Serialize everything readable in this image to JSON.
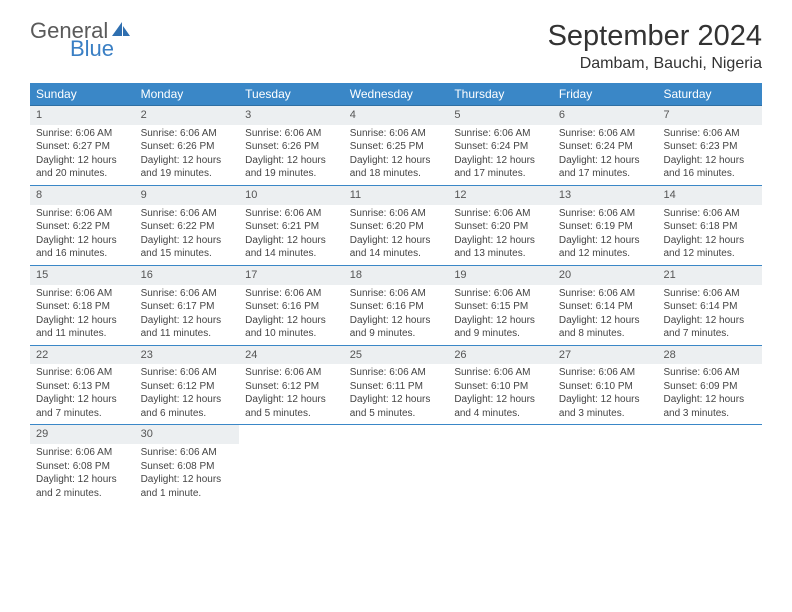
{
  "logo": {
    "top": "General",
    "bottom": "Blue"
  },
  "title": "September 2024",
  "location": "Dambam, Bauchi, Nigeria",
  "header_bg": "#3a87c7",
  "daynum_bg": "#eceff1",
  "weekdays": [
    "Sunday",
    "Monday",
    "Tuesday",
    "Wednesday",
    "Thursday",
    "Friday",
    "Saturday"
  ],
  "weeks": [
    [
      {
        "n": "1",
        "sunrise": "Sunrise: 6:06 AM",
        "sunset": "Sunset: 6:27 PM",
        "day": "Daylight: 12 hours and 20 minutes."
      },
      {
        "n": "2",
        "sunrise": "Sunrise: 6:06 AM",
        "sunset": "Sunset: 6:26 PM",
        "day": "Daylight: 12 hours and 19 minutes."
      },
      {
        "n": "3",
        "sunrise": "Sunrise: 6:06 AM",
        "sunset": "Sunset: 6:26 PM",
        "day": "Daylight: 12 hours and 19 minutes."
      },
      {
        "n": "4",
        "sunrise": "Sunrise: 6:06 AM",
        "sunset": "Sunset: 6:25 PM",
        "day": "Daylight: 12 hours and 18 minutes."
      },
      {
        "n": "5",
        "sunrise": "Sunrise: 6:06 AM",
        "sunset": "Sunset: 6:24 PM",
        "day": "Daylight: 12 hours and 17 minutes."
      },
      {
        "n": "6",
        "sunrise": "Sunrise: 6:06 AM",
        "sunset": "Sunset: 6:24 PM",
        "day": "Daylight: 12 hours and 17 minutes."
      },
      {
        "n": "7",
        "sunrise": "Sunrise: 6:06 AM",
        "sunset": "Sunset: 6:23 PM",
        "day": "Daylight: 12 hours and 16 minutes."
      }
    ],
    [
      {
        "n": "8",
        "sunrise": "Sunrise: 6:06 AM",
        "sunset": "Sunset: 6:22 PM",
        "day": "Daylight: 12 hours and 16 minutes."
      },
      {
        "n": "9",
        "sunrise": "Sunrise: 6:06 AM",
        "sunset": "Sunset: 6:22 PM",
        "day": "Daylight: 12 hours and 15 minutes."
      },
      {
        "n": "10",
        "sunrise": "Sunrise: 6:06 AM",
        "sunset": "Sunset: 6:21 PM",
        "day": "Daylight: 12 hours and 14 minutes."
      },
      {
        "n": "11",
        "sunrise": "Sunrise: 6:06 AM",
        "sunset": "Sunset: 6:20 PM",
        "day": "Daylight: 12 hours and 14 minutes."
      },
      {
        "n": "12",
        "sunrise": "Sunrise: 6:06 AM",
        "sunset": "Sunset: 6:20 PM",
        "day": "Daylight: 12 hours and 13 minutes."
      },
      {
        "n": "13",
        "sunrise": "Sunrise: 6:06 AM",
        "sunset": "Sunset: 6:19 PM",
        "day": "Daylight: 12 hours and 12 minutes."
      },
      {
        "n": "14",
        "sunrise": "Sunrise: 6:06 AM",
        "sunset": "Sunset: 6:18 PM",
        "day": "Daylight: 12 hours and 12 minutes."
      }
    ],
    [
      {
        "n": "15",
        "sunrise": "Sunrise: 6:06 AM",
        "sunset": "Sunset: 6:18 PM",
        "day": "Daylight: 12 hours and 11 minutes."
      },
      {
        "n": "16",
        "sunrise": "Sunrise: 6:06 AM",
        "sunset": "Sunset: 6:17 PM",
        "day": "Daylight: 12 hours and 11 minutes."
      },
      {
        "n": "17",
        "sunrise": "Sunrise: 6:06 AM",
        "sunset": "Sunset: 6:16 PM",
        "day": "Daylight: 12 hours and 10 minutes."
      },
      {
        "n": "18",
        "sunrise": "Sunrise: 6:06 AM",
        "sunset": "Sunset: 6:16 PM",
        "day": "Daylight: 12 hours and 9 minutes."
      },
      {
        "n": "19",
        "sunrise": "Sunrise: 6:06 AM",
        "sunset": "Sunset: 6:15 PM",
        "day": "Daylight: 12 hours and 9 minutes."
      },
      {
        "n": "20",
        "sunrise": "Sunrise: 6:06 AM",
        "sunset": "Sunset: 6:14 PM",
        "day": "Daylight: 12 hours and 8 minutes."
      },
      {
        "n": "21",
        "sunrise": "Sunrise: 6:06 AM",
        "sunset": "Sunset: 6:14 PM",
        "day": "Daylight: 12 hours and 7 minutes."
      }
    ],
    [
      {
        "n": "22",
        "sunrise": "Sunrise: 6:06 AM",
        "sunset": "Sunset: 6:13 PM",
        "day": "Daylight: 12 hours and 7 minutes."
      },
      {
        "n": "23",
        "sunrise": "Sunrise: 6:06 AM",
        "sunset": "Sunset: 6:12 PM",
        "day": "Daylight: 12 hours and 6 minutes."
      },
      {
        "n": "24",
        "sunrise": "Sunrise: 6:06 AM",
        "sunset": "Sunset: 6:12 PM",
        "day": "Daylight: 12 hours and 5 minutes."
      },
      {
        "n": "25",
        "sunrise": "Sunrise: 6:06 AM",
        "sunset": "Sunset: 6:11 PM",
        "day": "Daylight: 12 hours and 5 minutes."
      },
      {
        "n": "26",
        "sunrise": "Sunrise: 6:06 AM",
        "sunset": "Sunset: 6:10 PM",
        "day": "Daylight: 12 hours and 4 minutes."
      },
      {
        "n": "27",
        "sunrise": "Sunrise: 6:06 AM",
        "sunset": "Sunset: 6:10 PM",
        "day": "Daylight: 12 hours and 3 minutes."
      },
      {
        "n": "28",
        "sunrise": "Sunrise: 6:06 AM",
        "sunset": "Sunset: 6:09 PM",
        "day": "Daylight: 12 hours and 3 minutes."
      }
    ],
    [
      {
        "n": "29",
        "sunrise": "Sunrise: 6:06 AM",
        "sunset": "Sunset: 6:08 PM",
        "day": "Daylight: 12 hours and 2 minutes."
      },
      {
        "n": "30",
        "sunrise": "Sunrise: 6:06 AM",
        "sunset": "Sunset: 6:08 PM",
        "day": "Daylight: 12 hours and 1 minute."
      },
      null,
      null,
      null,
      null,
      null
    ]
  ]
}
